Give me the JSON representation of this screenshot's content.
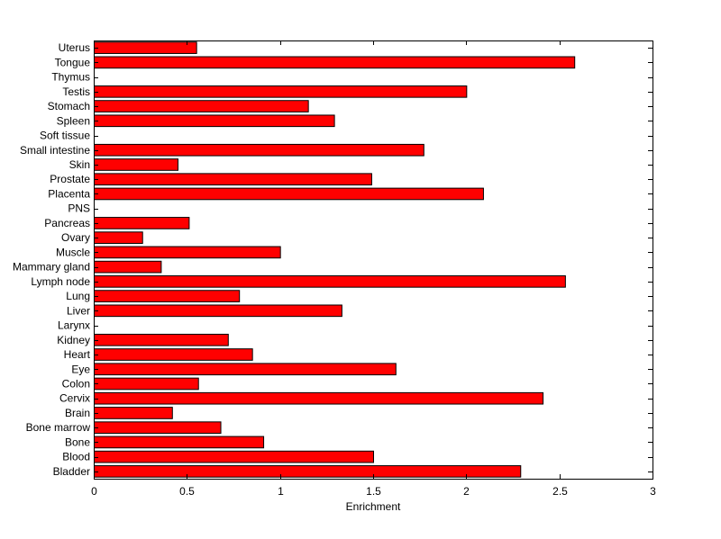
{
  "chart_data": {
    "type": "bar",
    "orientation": "horizontal",
    "xlabel": "Enrichment",
    "ylabel": "",
    "title": "",
    "xlim": [
      0,
      3
    ],
    "x_ticks": [
      "0",
      "0.5",
      "1",
      "1.5",
      "2",
      "2.5",
      "3"
    ],
    "grid": false,
    "bar_color": "#ff0000",
    "bar_edge_color": "#000000",
    "categories": [
      "Uterus",
      "Tongue",
      "Thymus",
      "Testis",
      "Stomach",
      "Spleen",
      "Soft tissue",
      "Small intestine",
      "Skin",
      "Prostate",
      "Placenta",
      "PNS",
      "Pancreas",
      "Ovary",
      "Muscle",
      "Mammary gland",
      "Lymph node",
      "Lung",
      "Liver",
      "Larynx",
      "Kidney",
      "Heart",
      "Eye",
      "Colon",
      "Cervix",
      "Brain",
      "Bone marrow",
      "Bone",
      "Blood",
      "Bladder"
    ],
    "values": [
      0.55,
      2.58,
      0,
      2.0,
      1.15,
      1.29,
      0,
      1.77,
      0.45,
      1.49,
      2.09,
      0,
      0.51,
      0.26,
      1.0,
      0.36,
      2.53,
      0.78,
      1.33,
      0,
      0.72,
      0.85,
      1.62,
      0.56,
      2.41,
      0.42,
      0.68,
      0.91,
      1.5,
      2.29
    ]
  }
}
